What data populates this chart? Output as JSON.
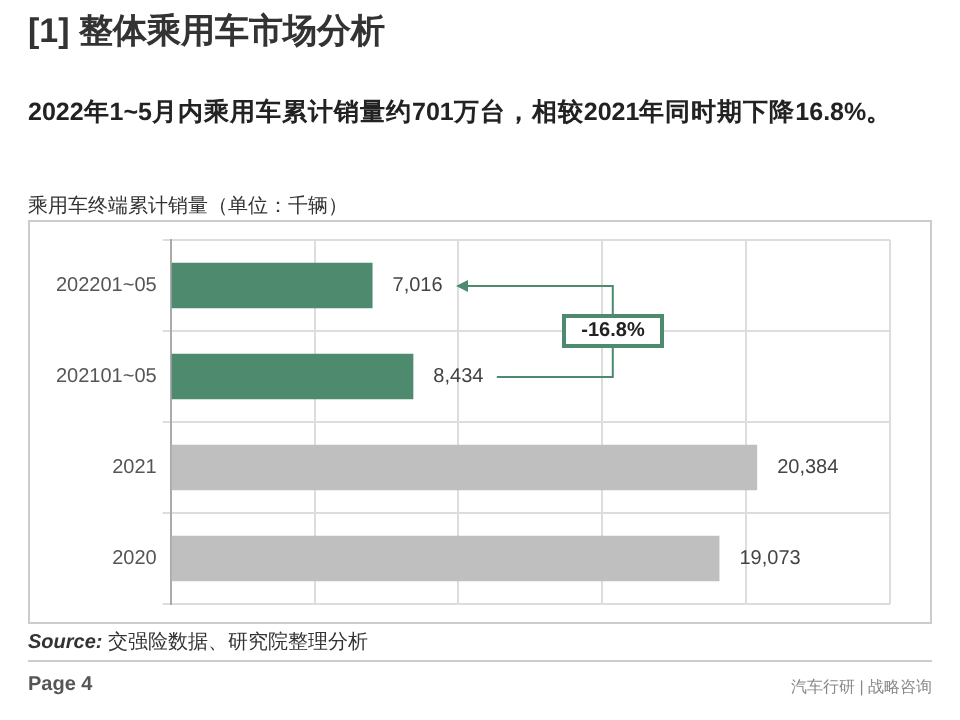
{
  "chart_data": {
    "type": "bar",
    "orientation": "horizontal",
    "title": "[1] 整体乘用车市场分析",
    "subtitle": "2022年1~5月内乘用车累计销量约701万台，相较2021年同时期下降16.8%。",
    "ylabel": "乘用车终端累计销量（单位：千辆）",
    "categories": [
      "202201~05",
      "202101~05",
      "2021",
      "2020"
    ],
    "values": [
      7016,
      8434,
      20384,
      19073
    ],
    "colors": [
      "#4e8a6e",
      "#4e8a6e",
      "#bfbfbf",
      "#bfbfbf"
    ],
    "value_labels": [
      "7,016",
      "8,434",
      "20,384",
      "19,073"
    ],
    "tick_labels": "y",
    "grid": true,
    "legend": false,
    "annotations": [
      "-16.8%",
      "Source: 交强险数据、研究院整理分析",
      "Page 4",
      "汽车行研 | 战略咨询"
    ]
  }
}
